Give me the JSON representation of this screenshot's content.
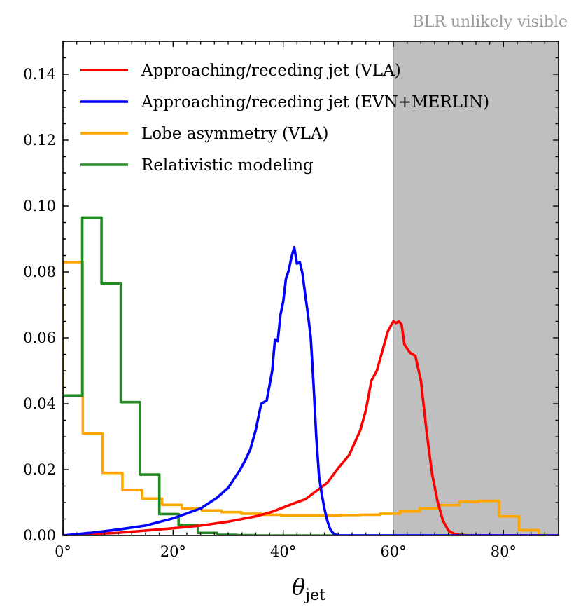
{
  "chart_data": {
    "type": "line",
    "xlim": [
      0,
      90
    ],
    "ylim": [
      0,
      0.15
    ],
    "x_unit_suffix": "°",
    "xticks": [
      0,
      20,
      40,
      60,
      80
    ],
    "xtick_labels": [
      "0°",
      "20°",
      "40°",
      "60°",
      "80°"
    ],
    "yticks": [
      0.0,
      0.02,
      0.04,
      0.06,
      0.08,
      0.1,
      0.12,
      0.14
    ],
    "ytick_labels": [
      "0.00",
      "0.02",
      "0.04",
      "0.06",
      "0.08",
      "0.10",
      "0.12",
      "0.14"
    ],
    "xlabel_main": "θ",
    "xlabel_sub": "jet",
    "shaded_region": {
      "x_from": 60,
      "x_to": 90,
      "color": "#bfbfbf",
      "label": "BLR unlikely visible"
    },
    "series": [
      {
        "name": "Approaching/receding jet (VLA)",
        "color": "#ff0000",
        "kind": "line",
        "x": [
          0,
          10,
          20,
          25,
          30,
          35,
          38,
          40,
          42,
          44,
          46,
          48,
          50,
          52,
          54,
          55,
          56,
          57,
          58,
          59,
          60,
          60.5,
          61,
          61.5,
          62,
          63,
          64,
          65,
          66,
          67,
          68,
          69,
          70,
          71,
          72,
          74,
          78,
          90
        ],
        "y": [
          0,
          0.0008,
          0.0022,
          0.003,
          0.0042,
          0.0058,
          0.0072,
          0.0085,
          0.0098,
          0.011,
          0.0135,
          0.016,
          0.0205,
          0.0245,
          0.032,
          0.038,
          0.047,
          0.05,
          0.056,
          0.062,
          0.065,
          0.0645,
          0.065,
          0.064,
          0.058,
          0.0555,
          0.0545,
          0.047,
          0.032,
          0.019,
          0.0105,
          0.0045,
          0.0015,
          0.0005,
          0.0002,
          0,
          0,
          0
        ]
      },
      {
        "name": "Approaching/receding jet (EVN+MERLIN)",
        "color": "#0000ff",
        "kind": "line",
        "x": [
          0,
          5,
          10,
          15,
          20,
          25,
          28,
          30,
          32,
          33,
          34,
          35,
          36,
          37,
          38,
          38.5,
          39,
          39.5,
          40,
          40.5,
          41,
          41.5,
          42,
          42.5,
          43,
          43.5,
          44,
          44.5,
          45,
          45.5,
          46,
          46.5,
          47,
          47.5,
          48,
          48.5,
          49,
          49.5,
          50,
          51,
          55,
          90
        ],
        "y": [
          0,
          0.0008,
          0.0018,
          0.003,
          0.0052,
          0.0082,
          0.0115,
          0.0145,
          0.0195,
          0.0225,
          0.026,
          0.032,
          0.04,
          0.041,
          0.05,
          0.0595,
          0.059,
          0.067,
          0.071,
          0.078,
          0.0805,
          0.0845,
          0.0875,
          0.0825,
          0.083,
          0.0795,
          0.073,
          0.067,
          0.06,
          0.046,
          0.03,
          0.018,
          0.0125,
          0.008,
          0.0045,
          0.002,
          0.0008,
          0.0003,
          0,
          0,
          0,
          0
        ]
      },
      {
        "name": "Lobe asymmetry (VLA)",
        "color": "#ffa500",
        "kind": "step",
        "edges": [
          0,
          3.6,
          7.2,
          10.8,
          14.4,
          18,
          21.6,
          25.2,
          28.8,
          32.4,
          36,
          39.6,
          43.2,
          46.8,
          50.4,
          54,
          57.6,
          61.2,
          64.8,
          68.4,
          72,
          75.6,
          79.2,
          82.8,
          86.4,
          90
        ],
        "values": [
          0.083,
          0.031,
          0.019,
          0.0138,
          0.0112,
          0.0093,
          0.0082,
          0.0076,
          0.0071,
          0.0066,
          0.0063,
          0.0061,
          0.0061,
          0.0061,
          0.0062,
          0.0063,
          0.0066,
          0.0073,
          0.0082,
          0.0092,
          0.0102,
          0.0105,
          0.0058,
          0.0016,
          0
        ]
      },
      {
        "name": "Relativistic modeling",
        "color": "#228b22",
        "kind": "step",
        "edges": [
          0,
          3.5,
          7,
          10.5,
          14,
          17.5,
          21,
          24.5,
          28,
          31.5,
          35,
          38.5,
          90
        ],
        "values": [
          0.0425,
          0.0965,
          0.0765,
          0.0405,
          0.0185,
          0.0065,
          0.0032,
          0.0008,
          0.0002,
          0.0001,
          0,
          0
        ]
      }
    ]
  }
}
